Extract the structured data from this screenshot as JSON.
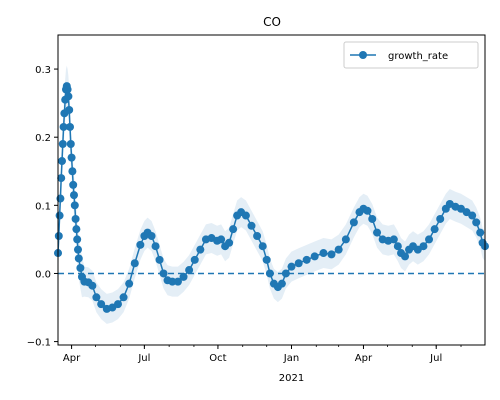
{
  "chart_data": {
    "type": "line",
    "title": "CO",
    "xlabel": "",
    "ylabel": "",
    "x_start": "2020-03-15",
    "x_end": "2021-08-31",
    "xlim": [
      "2020-03-15",
      "2021-08-31"
    ],
    "ylim": [
      -0.105,
      0.35
    ],
    "x_ticks": [
      {
        "date": "2020-04-01",
        "label": "Apr"
      },
      {
        "date": "2020-07-01",
        "label": "Jul"
      },
      {
        "date": "2020-10-01",
        "label": "Oct"
      },
      {
        "date": "2021-01-01",
        "label": "Jan",
        "sublabel": "2021"
      },
      {
        "date": "2021-04-01",
        "label": "Apr"
      },
      {
        "date": "2021-07-01",
        "label": "Jul"
      }
    ],
    "y_ticks": [
      -0.1,
      0.0,
      0.1,
      0.2,
      0.3
    ],
    "y_tick_labels": [
      "−0.1",
      "0.0",
      "0.1",
      "0.2",
      "0.3"
    ],
    "grid": false,
    "legend": {
      "position": "top-right",
      "entries": [
        "growth_rate"
      ]
    },
    "reference_line": {
      "y": 0.0,
      "style": "dashed"
    },
    "colors": {
      "line": "#1f77b4",
      "band": "#1f77b4",
      "ref": "#1f77b4"
    },
    "series": [
      {
        "name": "growth_rate",
        "points": [
          [
            "2020-03-15",
            0.03
          ],
          [
            "2020-03-16",
            0.055
          ],
          [
            "2020-03-17",
            0.085
          ],
          [
            "2020-03-18",
            0.11
          ],
          [
            "2020-03-19",
            0.14
          ],
          [
            "2020-03-20",
            0.165
          ],
          [
            "2020-03-21",
            0.19
          ],
          [
            "2020-03-22",
            0.215
          ],
          [
            "2020-03-23",
            0.235
          ],
          [
            "2020-03-24",
            0.255
          ],
          [
            "2020-03-25",
            0.27
          ],
          [
            "2020-03-26",
            0.275
          ],
          [
            "2020-03-27",
            0.27
          ],
          [
            "2020-03-28",
            0.26
          ],
          [
            "2020-03-29",
            0.24
          ],
          [
            "2020-03-30",
            0.215
          ],
          [
            "2020-03-31",
            0.19
          ],
          [
            "2020-04-01",
            0.17
          ],
          [
            "2020-04-02",
            0.15
          ],
          [
            "2020-04-03",
            0.13
          ],
          [
            "2020-04-04",
            0.115
          ],
          [
            "2020-04-05",
            0.1
          ],
          [
            "2020-04-06",
            0.08
          ],
          [
            "2020-04-07",
            0.065
          ],
          [
            "2020-04-08",
            0.05
          ],
          [
            "2020-04-09",
            0.035
          ],
          [
            "2020-04-10",
            0.022
          ],
          [
            "2020-04-12",
            0.008
          ],
          [
            "2020-04-14",
            -0.005
          ],
          [
            "2020-04-17",
            -0.012
          ],
          [
            "2020-04-22",
            -0.013
          ],
          [
            "2020-04-27",
            -0.018
          ],
          [
            "2020-05-02",
            -0.035
          ],
          [
            "2020-05-08",
            -0.045
          ],
          [
            "2020-05-15",
            -0.052
          ],
          [
            "2020-05-22",
            -0.05
          ],
          [
            "2020-05-29",
            -0.045
          ],
          [
            "2020-06-05",
            -0.035
          ],
          [
            "2020-06-12",
            -0.015
          ],
          [
            "2020-06-19",
            0.015
          ],
          [
            "2020-06-26",
            0.042
          ],
          [
            "2020-07-01",
            0.055
          ],
          [
            "2020-07-05",
            0.06
          ],
          [
            "2020-07-10",
            0.055
          ],
          [
            "2020-07-15",
            0.04
          ],
          [
            "2020-07-20",
            0.02
          ],
          [
            "2020-07-25",
            0.0
          ],
          [
            "2020-07-30",
            -0.01
          ],
          [
            "2020-08-05",
            -0.012
          ],
          [
            "2020-08-12",
            -0.012
          ],
          [
            "2020-08-19",
            -0.005
          ],
          [
            "2020-08-26",
            0.005
          ],
          [
            "2020-09-02",
            0.02
          ],
          [
            "2020-09-09",
            0.035
          ],
          [
            "2020-09-16",
            0.05
          ],
          [
            "2020-09-23",
            0.052
          ],
          [
            "2020-09-30",
            0.048
          ],
          [
            "2020-10-05",
            0.05
          ],
          [
            "2020-10-10",
            0.04
          ],
          [
            "2020-10-15",
            0.045
          ],
          [
            "2020-10-20",
            0.065
          ],
          [
            "2020-10-25",
            0.085
          ],
          [
            "2020-10-30",
            0.09
          ],
          [
            "2020-11-05",
            0.085
          ],
          [
            "2020-11-12",
            0.07
          ],
          [
            "2020-11-19",
            0.055
          ],
          [
            "2020-11-26",
            0.04
          ],
          [
            "2020-12-01",
            0.02
          ],
          [
            "2020-12-05",
            0.0
          ],
          [
            "2020-12-10",
            -0.015
          ],
          [
            "2020-12-15",
            -0.02
          ],
          [
            "2020-12-20",
            -0.015
          ],
          [
            "2020-12-25",
            0.0
          ],
          [
            "2021-01-01",
            0.01
          ],
          [
            "2021-01-10",
            0.015
          ],
          [
            "2021-01-20",
            0.02
          ],
          [
            "2021-01-30",
            0.025
          ],
          [
            "2021-02-10",
            0.03
          ],
          [
            "2021-02-20",
            0.028
          ],
          [
            "2021-03-01",
            0.035
          ],
          [
            "2021-03-10",
            0.05
          ],
          [
            "2021-03-20",
            0.075
          ],
          [
            "2021-03-27",
            0.09
          ],
          [
            "2021-04-01",
            0.095
          ],
          [
            "2021-04-06",
            0.092
          ],
          [
            "2021-04-12",
            0.08
          ],
          [
            "2021-04-18",
            0.06
          ],
          [
            "2021-04-25",
            0.05
          ],
          [
            "2021-05-02",
            0.048
          ],
          [
            "2021-05-09",
            0.05
          ],
          [
            "2021-05-14",
            0.04
          ],
          [
            "2021-05-18",
            0.03
          ],
          [
            "2021-05-23",
            0.025
          ],
          [
            "2021-05-28",
            0.035
          ],
          [
            "2021-06-02",
            0.04
          ],
          [
            "2021-06-08",
            0.035
          ],
          [
            "2021-06-15",
            0.04
          ],
          [
            "2021-06-22",
            0.05
          ],
          [
            "2021-06-29",
            0.065
          ],
          [
            "2021-07-06",
            0.08
          ],
          [
            "2021-07-13",
            0.095
          ],
          [
            "2021-07-18",
            0.102
          ],
          [
            "2021-07-25",
            0.098
          ],
          [
            "2021-08-01",
            0.095
          ],
          [
            "2021-08-08",
            0.09
          ],
          [
            "2021-08-15",
            0.085
          ],
          [
            "2021-08-20",
            0.075
          ],
          [
            "2021-08-25",
            0.06
          ],
          [
            "2021-08-28",
            0.045
          ],
          [
            "2021-08-31",
            0.04
          ]
        ]
      }
    ]
  }
}
